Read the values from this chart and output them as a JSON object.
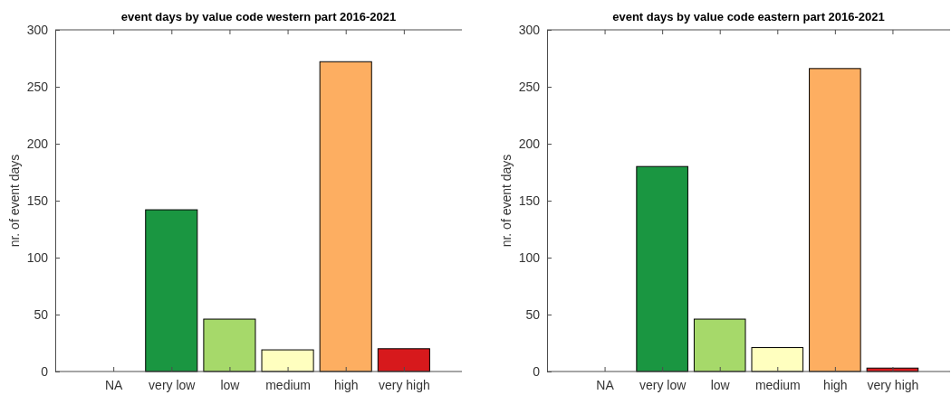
{
  "chart_data": [
    {
      "type": "bar",
      "title": "event days by value code western part 2016-2021",
      "ylabel": "nr. of event days",
      "categories": [
        "NA",
        "very low",
        "low",
        "medium",
        "high",
        "very high"
      ],
      "values": [
        0,
        142,
        46,
        19,
        272,
        20
      ],
      "colors": [
        "#bababa",
        "#1a9641",
        "#a6d96a",
        "#ffffbf",
        "#fdae61",
        "#d7191c"
      ],
      "ylim": [
        0,
        300
      ],
      "yticks": [
        0,
        50,
        100,
        150,
        200,
        250,
        300
      ],
      "grid": false
    },
    {
      "type": "bar",
      "title": "event days by value code eastern part 2016-2021",
      "ylabel": "nr. of event days",
      "categories": [
        "NA",
        "very low",
        "low",
        "medium",
        "high",
        "very high"
      ],
      "values": [
        0,
        180,
        46,
        21,
        266,
        3
      ],
      "colors": [
        "#bababa",
        "#1a9641",
        "#a6d96a",
        "#ffffbf",
        "#fdae61",
        "#d7191c"
      ],
      "ylim": [
        0,
        300
      ],
      "yticks": [
        0,
        50,
        100,
        150,
        200,
        250,
        300
      ],
      "grid": false
    }
  ]
}
